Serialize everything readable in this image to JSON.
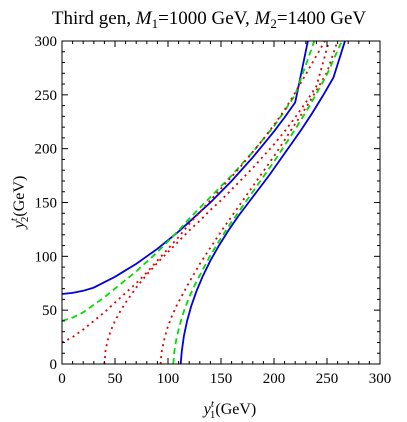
{
  "chart_data": {
    "type": "line",
    "title": {
      "prefix": "Third gen, ",
      "m1_symbol": "M",
      "m1_sub": "1",
      "m1_value": "=1000 GeV, ",
      "m2_symbol": "M",
      "m2_sub": "2",
      "m2_value": "=1400 GeV"
    },
    "xlabel": {
      "symbol": "y",
      "sup": "t",
      "sub": "1",
      "unit": "(GeV)"
    },
    "ylabel": {
      "symbol": "y",
      "sup": "t",
      "sub": "2",
      "unit": "(GeV)"
    },
    "xlim": [
      0,
      300
    ],
    "ylim": [
      0,
      300
    ],
    "xticks": [
      "0",
      "50",
      "100",
      "150",
      "200",
      "250",
      "300"
    ],
    "yticks": [
      "0",
      "50",
      "100",
      "150",
      "200",
      "250",
      "300"
    ],
    "grid": false,
    "legend": "none",
    "series": [
      {
        "style": "solid",
        "color": "#0000dd",
        "x": [
          0,
          10,
          20,
          30,
          40,
          50,
          60,
          70,
          80,
          90,
          100,
          110,
          120,
          130,
          140,
          150,
          160,
          170,
          180,
          190,
          200,
          210,
          220,
          232
        ],
        "y": [
          65,
          66,
          68,
          71,
          76,
          81,
          87,
          93,
          100,
          107,
          115,
          123,
          132,
          141,
          150,
          160,
          170,
          181,
          192,
          204,
          216,
          229,
          243,
          300
        ]
      },
      {
        "style": "dashed",
        "color": "#00dd00",
        "x": [
          0,
          10,
          20,
          30,
          40,
          50,
          60,
          70,
          80,
          90,
          100,
          110,
          120,
          130,
          140,
          150,
          160,
          170,
          180,
          190,
          200,
          210,
          220,
          238
        ],
        "y": [
          40,
          43,
          48,
          55,
          62,
          70,
          78,
          86,
          95,
          104,
          114,
          124,
          135,
          145,
          155,
          165,
          175,
          186,
          197,
          209,
          221,
          235,
          250,
          300
        ]
      },
      {
        "style": "dotted",
        "color": "#dd0000",
        "x": [
          0,
          10,
          20,
          30,
          40,
          50,
          60,
          70,
          80,
          90,
          100,
          110,
          120,
          130,
          140,
          150,
          160,
          170,
          180,
          190,
          200,
          210,
          220,
          248
        ],
        "y": [
          20,
          25,
          32,
          40,
          48,
          57,
          66,
          75,
          85,
          96,
          107,
          118,
          130,
          141,
          152,
          163,
          174,
          185,
          197,
          209,
          222,
          236,
          252,
          300
        ]
      },
      {
        "style": "dotted",
        "color": "#dd0000",
        "x": [
          40,
          41,
          43,
          46,
          50,
          55,
          60,
          70,
          80,
          90,
          100,
          110,
          120,
          130,
          140,
          150,
          160,
          170,
          180,
          190,
          200,
          210,
          220,
          230,
          240,
          252
        ],
        "y": [
          0,
          12,
          22,
          31,
          40,
          49,
          57,
          71,
          83,
          94,
          104,
          114,
          124,
          133,
          143,
          152,
          162,
          172,
          182,
          193,
          204,
          216,
          229,
          243,
          258,
          300
        ]
      },
      {
        "style": "dotted",
        "color": "#dd0000",
        "x": [
          93,
          94,
          96,
          99,
          103,
          108,
          114,
          120,
          130,
          140,
          150,
          160,
          170,
          180,
          190,
          200,
          210,
          220,
          230,
          240,
          250,
          260
        ],
        "y": [
          0,
          11,
          21,
          32,
          43,
          54,
          65,
          76,
          93,
          108,
          123,
          137,
          151,
          165,
          179,
          193,
          208,
          223,
          238,
          254,
          271,
          300
        ]
      },
      {
        "style": "dashed",
        "color": "#00dd00",
        "x": [
          105,
          106,
          108,
          111,
          115,
          120,
          126,
          133,
          140,
          150,
          160,
          170,
          180,
          190,
          200,
          210,
          220,
          230,
          240,
          250,
          264
        ],
        "y": [
          0,
          12,
          24,
          36,
          49,
          62,
          75,
          88,
          101,
          117,
          132,
          146,
          160,
          174,
          188,
          203,
          218,
          234,
          251,
          269,
          300
        ]
      },
      {
        "style": "solid",
        "color": "#0000dd",
        "x": [
          112,
          113,
          115,
          118,
          122,
          127,
          133,
          140,
          148,
          157,
          166,
          176,
          186,
          196,
          206,
          216,
          226,
          236,
          246,
          256,
          267
        ],
        "y": [
          0,
          12,
          26,
          40,
          54,
          68,
          82,
          96,
          110,
          124,
          137,
          150,
          163,
          176,
          190,
          204,
          218,
          233,
          249,
          266,
          300
        ]
      }
    ]
  }
}
